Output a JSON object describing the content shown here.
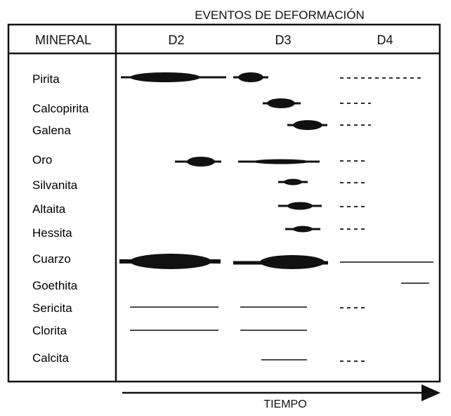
{
  "title": "EVENTOS DE DEFORMACIÓN",
  "column_header": "MINERAL",
  "events": [
    "D2",
    "D3",
    "D4"
  ],
  "time_label": "TIEMPO",
  "minerals": [
    {
      "name": "Pirita"
    },
    {
      "name": "Calcopirita"
    },
    {
      "name": "Galena"
    },
    {
      "name": "Oro"
    },
    {
      "name": "Silvanita"
    },
    {
      "name": "Altaita"
    },
    {
      "name": "Hessita"
    },
    {
      "name": "Cuarzo"
    },
    {
      "name": "Goethita"
    },
    {
      "name": "Sericita"
    },
    {
      "name": "Clorita"
    },
    {
      "name": "Calcita"
    }
  ],
  "colors": {
    "ink": "#111111",
    "background": "#ffffff"
  }
}
